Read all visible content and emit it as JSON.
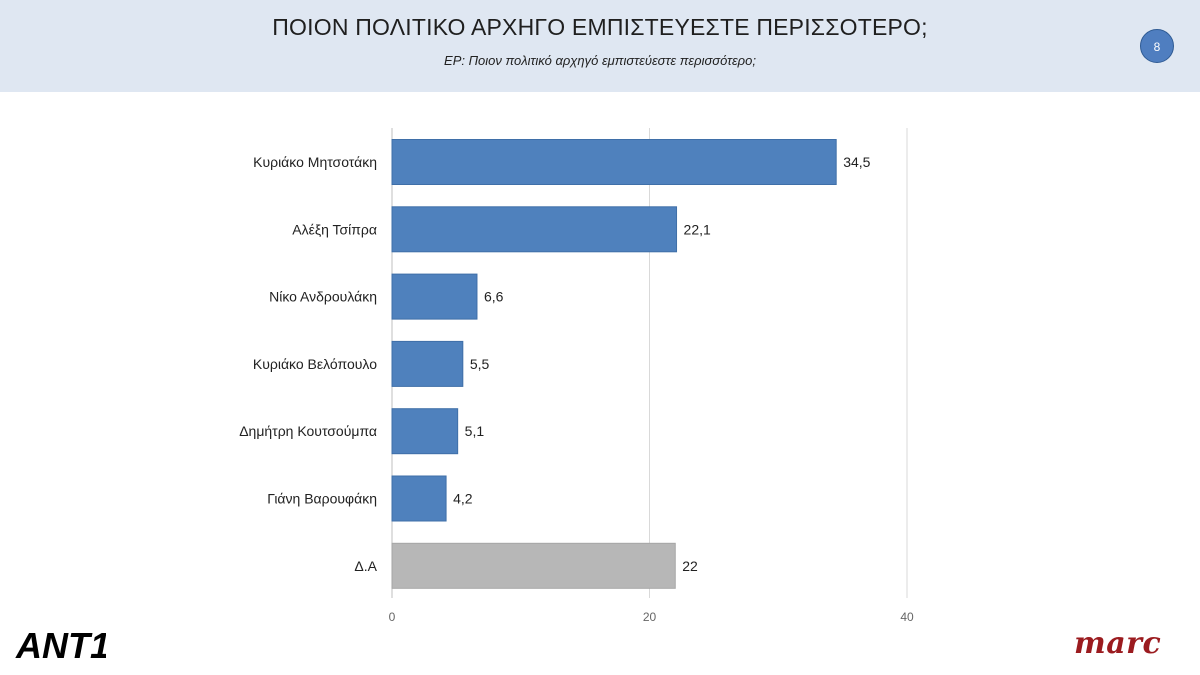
{
  "header": {
    "title": "ΠΟΙΟΝ ΠΟΛΙΤΙΚΟ ΑΡΧΗΓΟ ΕΜΠΙΣΤΕΥΕΣΤΕ ΠΕΡΙΣΣΟΤΕΡΟ;",
    "subtitle": "ΕΡ: Ποιον πολιτικό αρχηγό εμπιστεύεστε περισσότερο;",
    "page_number": "8"
  },
  "colors": {
    "header_bg": "#dfe7f2",
    "bar_primary": "#4f81bd",
    "bar_secondary": "#b7b7b7",
    "badge": "#4f7ec0"
  },
  "logos": {
    "left": "ANT1",
    "right": "marc"
  },
  "chart_data": {
    "type": "bar",
    "orientation": "horizontal",
    "categories": [
      "Κυριάκο Μητσοτάκη",
      "Αλέξη Τσίπρα",
      "Νίκο Ανδρουλάκη",
      "Κυριάκο Βελόπουλο",
      "Δημήτρη Κουτσούμπα",
      "Γιάνη Βαρουφάκη",
      "Δ.Α"
    ],
    "values": [
      34.5,
      22.1,
      6.6,
      5.5,
      5.1,
      4.2,
      22
    ],
    "value_labels": [
      "34,5",
      "22,1",
      "6,6",
      "5,5",
      "5,1",
      "4,2",
      "22"
    ],
    "bar_colors": [
      "#4f81bd",
      "#4f81bd",
      "#4f81bd",
      "#4f81bd",
      "#4f81bd",
      "#4f81bd",
      "#b7b7b7"
    ],
    "xlim": [
      0,
      40
    ],
    "xticks": [
      0,
      20,
      40
    ],
    "xtick_labels": [
      "0",
      "20",
      "40"
    ],
    "grid": "vertical",
    "legend": "none"
  }
}
